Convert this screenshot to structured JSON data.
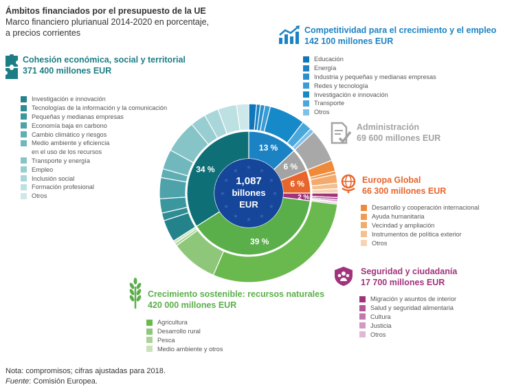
{
  "title": {
    "line1": "Ámbitos financiados por el presupuesto de la UE",
    "line2": "Marco financiero plurianual 2014-2020 en porcentaje,",
    "line3": "a precios corrientes"
  },
  "note": {
    "line1": "Nota: compromisos; cifras ajustadas para 2018.",
    "source_label": "Fuente",
    "source_text": ": Comisión Europea."
  },
  "center": {
    "line1": "1,087",
    "line2": "billones",
    "line3": "EUR"
  },
  "colors": {
    "cohesion": "#1c7d84",
    "competitividad": "#1b83c4",
    "administracion": "#a3a3a3",
    "europa": "#e8652c",
    "seguridad": "#a1337c",
    "crecimiento": "#5aaf4a"
  },
  "categories": [
    {
      "id": "cohesion",
      "name": "Cohesión económica, social y territorial",
      "amount": "371 400 millones EUR",
      "color": "#1c7d84",
      "items": [
        "Investigación e innovación",
        "Tecnologías de la información y la comunicación",
        "Pequeñas y medianas empresas",
        "Economía baja en carbono",
        "Cambio climático y riesgos",
        "Medio ambiente y eficiencia",
        "en el uso de los recursos",
        "Transporte y energía",
        "Empleo",
        "Inclusión social",
        "Formación profesional",
        "Otros"
      ]
    },
    {
      "id": "competitividad",
      "name": "Competitividad para el crecimiento y el empleo",
      "amount": "142 100 millones EUR",
      "color": "#1b83c4",
      "items": [
        "Educación",
        "Energía",
        "Industria y pequeñas y medianas empresas",
        "Redes y tecnología",
        "Investigación e innovación",
        "Transporte",
        "Otros"
      ]
    },
    {
      "id": "administracion",
      "name": "Administración",
      "amount": "69 600 millones EUR",
      "color": "#a3a3a3",
      "items": []
    },
    {
      "id": "europa",
      "name": "Europa Global",
      "amount": "66 300 millones EUR",
      "color": "#e8652c",
      "items": [
        "Desarrollo y cooperación internacional",
        "Ayuda humanitaria",
        "Vecindad y ampliación",
        "Instrumentos de política exterior",
        "Otros"
      ]
    },
    {
      "id": "seguridad",
      "name": "Seguridad y ciudadanía",
      "amount": "17 700 millones EUR",
      "color": "#a1337c",
      "items": [
        "Migración y asuntos de interior",
        "Salud y seguridad alimentaria",
        "Cultura",
        "Justicia",
        "Otros"
      ]
    },
    {
      "id": "crecimiento",
      "name": "Crecimiento sostenible: recursos naturales",
      "amount": "420 000 millones EUR",
      "color": "#5aaf4a",
      "items": [
        "Agricultura",
        "Desarrollo rural",
        "Pesca",
        "Medio ambiente y otros"
      ]
    }
  ],
  "chart_data": {
    "type": "pie",
    "title": "Ámbitos financiados por el presupuesto de la UE",
    "total_label": "1,087 billones EUR",
    "inner": [
      {
        "category": "Competitividad para el crecimiento y el empleo",
        "value": 13,
        "label": "13 %"
      },
      {
        "category": "Administración",
        "value": 6,
        "label": "6 %"
      },
      {
        "category": "Europa Global",
        "value": 6,
        "label": "6 %"
      },
      {
        "category": "Seguridad y ciudadanía",
        "value": 2,
        "label": "2 %"
      },
      {
        "category": "Crecimiento sostenible: recursos naturales",
        "value": 39,
        "label": "39 %"
      },
      {
        "category": "Cohesión económica, social y territorial",
        "value": 34,
        "label": "34 %"
      }
    ],
    "outer": {
      "Competitividad para el crecimiento y el empleo": [
        {
          "name": "Educación",
          "value": 1.4
        },
        {
          "name": "Energía",
          "value": 0.7
        },
        {
          "name": "Industria y pequeñas y medianas empresas",
          "value": 0.8
        },
        {
          "name": "Redes y tecnología",
          "value": 1.0
        },
        {
          "name": "Investigación e innovación",
          "value": 6.5
        },
        {
          "name": "Transporte",
          "value": 1.8
        },
        {
          "name": "Otros",
          "value": 0.8
        }
      ],
      "Administración": [
        {
          "name": "Administración",
          "value": 6
        }
      ],
      "Europa Global": [
        {
          "name": "Desarrollo y cooperación internacional",
          "value": 2.0
        },
        {
          "name": "Ayuda humanitaria",
          "value": 0.6
        },
        {
          "name": "Vecindad y ampliación",
          "value": 1.6
        },
        {
          "name": "Instrumentos de política exterior",
          "value": 1.0
        },
        {
          "name": "Otros",
          "value": 0.8
        }
      ],
      "Seguridad y ciudadanía": [
        {
          "name": "Migración y asuntos de interior",
          "value": 0.8
        },
        {
          "name": "Salud y seguridad alimentaria",
          "value": 0.4
        },
        {
          "name": "Cultura",
          "value": 0.3
        },
        {
          "name": "Justicia",
          "value": 0.2
        },
        {
          "name": "Otros",
          "value": 0.3
        }
      ],
      "Crecimiento sostenible: recursos naturales": [
        {
          "name": "Agricultura",
          "value": 29.5
        },
        {
          "name": "Desarrollo rural",
          "value": 8.5
        },
        {
          "name": "Pesca",
          "value": 0.5
        },
        {
          "name": "Medio ambiente y otros",
          "value": 0.5
        }
      ],
      "Cohesión económica, social y territorial": [
        {
          "name": "Investigación e innovación",
          "value": 4.0
        },
        {
          "name": "Tecnologías de la información y la comunicación",
          "value": 1.4
        },
        {
          "name": "Pequeñas y medianas empresas",
          "value": 2.6
        },
        {
          "name": "Economía baja en carbono",
          "value": 3.8
        },
        {
          "name": "Cambio climático y riesgos",
          "value": 1.6
        },
        {
          "name": "Medio ambiente y eficiencia en el uso de los recursos",
          "value": 3.6
        },
        {
          "name": "Transporte y energía",
          "value": 6.0
        },
        {
          "name": "Empleo",
          "value": 2.8
        },
        {
          "name": "Inclusión social",
          "value": 2.6
        },
        {
          "name": "Formación profesional",
          "value": 3.4
        },
        {
          "name": "Otros",
          "value": 2.2
        }
      ]
    }
  }
}
